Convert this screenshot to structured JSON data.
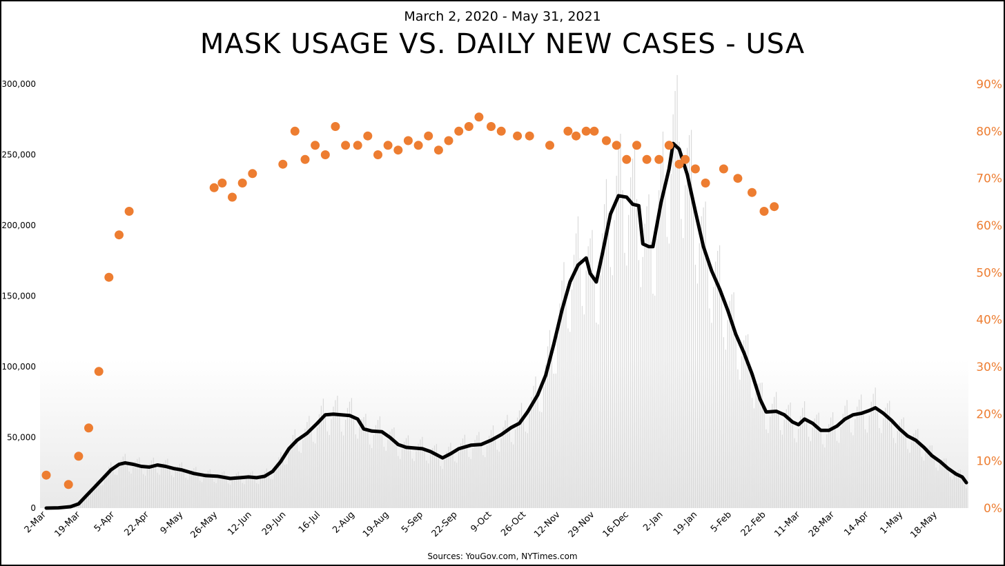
{
  "subtitle": "March 2, 2020 - May 31, 2021",
  "title": "MASK USAGE VS. DAILY NEW CASES - USA",
  "source": "Sources: YouGov.com, NYTimes.com",
  "colors": {
    "mask_dots": "#ED7D31",
    "cases_line": "#000000",
    "daily_bars": "#D9D9D9"
  },
  "chart_data": {
    "type": "line",
    "x_range": [
      "2020-03-02",
      "2021-05-31"
    ],
    "x_ticks": [
      "2-Mar",
      "19-Mar",
      "5-Apr",
      "22-Apr",
      "9-May",
      "26-May",
      "12-Jun",
      "29-Jun",
      "16-Jul",
      "2-Aug",
      "19-Aug",
      "5-Sep",
      "22-Sep",
      "9-Oct",
      "26-Oct",
      "12-Nov",
      "29-Nov",
      "16-Dec",
      "2-Jan",
      "19-Jan",
      "5-Feb",
      "22-Feb",
      "11-Mar",
      "28-Mar",
      "14-Apr",
      "1-May",
      "18-May"
    ],
    "y_left": {
      "ticks": [
        "0",
        "50,000",
        "100,000",
        "150,000",
        "200,000",
        "250,000",
        "300,000"
      ],
      "range": [
        0,
        300000
      ]
    },
    "y_right": {
      "ticks": [
        "0%",
        "10%",
        "20%",
        "30%",
        "40%",
        "50%",
        "60%",
        "70%",
        "80%",
        "90%"
      ],
      "range": [
        0,
        90
      ]
    },
    "series": [
      {
        "kind": "line",
        "axis": "left",
        "points": [
          [
            "2020-03-02",
            0
          ],
          [
            "2020-03-08",
            200
          ],
          [
            "2020-03-14",
            1000
          ],
          [
            "2020-03-18",
            3000
          ],
          [
            "2020-03-22",
            9000
          ],
          [
            "2020-03-26",
            15000
          ],
          [
            "2020-03-30",
            21000
          ],
          [
            "2020-04-03",
            27000
          ],
          [
            "2020-04-07",
            31000
          ],
          [
            "2020-04-10",
            32000
          ],
          [
            "2020-04-14",
            31000
          ],
          [
            "2020-04-18",
            29500
          ],
          [
            "2020-04-22",
            29000
          ],
          [
            "2020-04-26",
            30500
          ],
          [
            "2020-04-30",
            29500
          ],
          [
            "2020-05-04",
            28000
          ],
          [
            "2020-05-08",
            27000
          ],
          [
            "2020-05-14",
            24500
          ],
          [
            "2020-05-20",
            23000
          ],
          [
            "2020-05-26",
            22500
          ],
          [
            "2020-06-01",
            21000
          ],
          [
            "2020-06-06",
            21500
          ],
          [
            "2020-06-10",
            22000
          ],
          [
            "2020-06-14",
            21500
          ],
          [
            "2020-06-18",
            22500
          ],
          [
            "2020-06-22",
            26000
          ],
          [
            "2020-06-26",
            33000
          ],
          [
            "2020-06-30",
            42000
          ],
          [
            "2020-07-04",
            48000
          ],
          [
            "2020-07-09",
            53000
          ],
          [
            "2020-07-14",
            60000
          ],
          [
            "2020-07-18",
            66000
          ],
          [
            "2020-07-22",
            66500
          ],
          [
            "2020-07-26",
            66000
          ],
          [
            "2020-07-30",
            65500
          ],
          [
            "2020-08-03",
            63000
          ],
          [
            "2020-08-06",
            56000
          ],
          [
            "2020-08-10",
            54500
          ],
          [
            "2020-08-15",
            54000
          ],
          [
            "2020-08-19",
            50000
          ],
          [
            "2020-08-23",
            45000
          ],
          [
            "2020-08-27",
            43000
          ],
          [
            "2020-08-31",
            42500
          ],
          [
            "2020-09-04",
            42000
          ],
          [
            "2020-09-08",
            40000
          ],
          [
            "2020-09-14",
            35500
          ],
          [
            "2020-09-18",
            38500
          ],
          [
            "2020-09-22",
            42000
          ],
          [
            "2020-09-28",
            44500
          ],
          [
            "2020-10-03",
            45000
          ],
          [
            "2020-10-08",
            48000
          ],
          [
            "2020-10-13",
            52000
          ],
          [
            "2020-10-18",
            57000
          ],
          [
            "2020-10-22",
            60000
          ],
          [
            "2020-10-26",
            68000
          ],
          [
            "2020-10-31",
            80000
          ],
          [
            "2020-11-04",
            94000
          ],
          [
            "2020-11-08",
            116000
          ],
          [
            "2020-11-12",
            140000
          ],
          [
            "2020-11-16",
            160000
          ],
          [
            "2020-11-20",
            172000
          ],
          [
            "2020-11-24",
            177000
          ],
          [
            "2020-11-26",
            166000
          ],
          [
            "2020-11-29",
            160000
          ],
          [
            "2020-12-02",
            180000
          ],
          [
            "2020-12-06",
            208000
          ],
          [
            "2020-12-10",
            221000
          ],
          [
            "2020-12-14",
            220000
          ],
          [
            "2020-12-17",
            215000
          ],
          [
            "2020-12-20",
            214000
          ],
          [
            "2020-12-22",
            187000
          ],
          [
            "2020-12-25",
            185000
          ],
          [
            "2020-12-27",
            185000
          ],
          [
            "2020-12-31",
            216000
          ],
          [
            "2021-01-04",
            240000
          ],
          [
            "2021-01-06",
            258000
          ],
          [
            "2021-01-09",
            254000
          ],
          [
            "2021-01-13",
            236000
          ],
          [
            "2021-01-17",
            210000
          ],
          [
            "2021-01-21",
            185000
          ],
          [
            "2021-01-25",
            168000
          ],
          [
            "2021-01-29",
            155000
          ],
          [
            "2021-02-02",
            140000
          ],
          [
            "2021-02-06",
            123000
          ],
          [
            "2021-02-10",
            110000
          ],
          [
            "2021-02-14",
            95000
          ],
          [
            "2021-02-18",
            77000
          ],
          [
            "2021-02-21",
            68000
          ],
          [
            "2021-02-26",
            68500
          ],
          [
            "2021-03-02",
            66000
          ],
          [
            "2021-03-06",
            61000
          ],
          [
            "2021-03-09",
            59000
          ],
          [
            "2021-03-12",
            63000
          ],
          [
            "2021-03-16",
            60000
          ],
          [
            "2021-03-20",
            55000
          ],
          [
            "2021-03-24",
            55000
          ],
          [
            "2021-03-28",
            58000
          ],
          [
            "2021-04-01",
            63000
          ],
          [
            "2021-04-05",
            66000
          ],
          [
            "2021-04-09",
            67000
          ],
          [
            "2021-04-13",
            69000
          ],
          [
            "2021-04-16",
            71000
          ],
          [
            "2021-04-20",
            67000
          ],
          [
            "2021-04-24",
            62000
          ],
          [
            "2021-04-28",
            56000
          ],
          [
            "2021-05-02",
            51000
          ],
          [
            "2021-05-06",
            48000
          ],
          [
            "2021-05-10",
            43000
          ],
          [
            "2021-05-14",
            37000
          ],
          [
            "2021-05-18",
            33000
          ],
          [
            "2021-05-22",
            28000
          ],
          [
            "2021-05-26",
            24000
          ],
          [
            "2021-05-29",
            22000
          ],
          [
            "2021-05-31",
            18000
          ]
        ]
      },
      {
        "kind": "scatter",
        "axis": "right",
        "points": [
          [
            "2020-03-02",
            7
          ],
          [
            "2020-03-13",
            5
          ],
          [
            "2020-03-18",
            11
          ],
          [
            "2020-03-23",
            17
          ],
          [
            "2020-03-28",
            29
          ],
          [
            "2020-04-02",
            49
          ],
          [
            "2020-04-07",
            58
          ],
          [
            "2020-04-12",
            63
          ],
          [
            "2020-05-24",
            68
          ],
          [
            "2020-05-28",
            69
          ],
          [
            "2020-06-02",
            66
          ],
          [
            "2020-06-07",
            69
          ],
          [
            "2020-06-12",
            71
          ],
          [
            "2020-06-27",
            73
          ],
          [
            "2020-07-03",
            80
          ],
          [
            "2020-07-08",
            74
          ],
          [
            "2020-07-13",
            77
          ],
          [
            "2020-07-18",
            75
          ],
          [
            "2020-07-23",
            81
          ],
          [
            "2020-07-28",
            77
          ],
          [
            "2020-08-03",
            77
          ],
          [
            "2020-08-08",
            79
          ],
          [
            "2020-08-13",
            75
          ],
          [
            "2020-08-18",
            77
          ],
          [
            "2020-08-23",
            76
          ],
          [
            "2020-08-28",
            78
          ],
          [
            "2020-09-02",
            77
          ],
          [
            "2020-09-07",
            79
          ],
          [
            "2020-09-12",
            76
          ],
          [
            "2020-09-17",
            78
          ],
          [
            "2020-09-22",
            80
          ],
          [
            "2020-09-27",
            81
          ],
          [
            "2020-10-02",
            83
          ],
          [
            "2020-10-08",
            81
          ],
          [
            "2020-10-13",
            80
          ],
          [
            "2020-10-21",
            79
          ],
          [
            "2020-10-27",
            79
          ],
          [
            "2020-11-06",
            77
          ],
          [
            "2020-11-15",
            80
          ],
          [
            "2020-11-19",
            79
          ],
          [
            "2020-11-24",
            80
          ],
          [
            "2020-11-28",
            80
          ],
          [
            "2020-12-04",
            78
          ],
          [
            "2020-12-09",
            77
          ],
          [
            "2020-12-14",
            74
          ],
          [
            "2020-12-19",
            77
          ],
          [
            "2020-12-24",
            74
          ],
          [
            "2020-12-30",
            74
          ],
          [
            "2021-01-04",
            77
          ],
          [
            "2021-01-09",
            73
          ],
          [
            "2021-01-12",
            74
          ],
          [
            "2021-01-17",
            72
          ],
          [
            "2021-01-22",
            69
          ],
          [
            "2021-01-31",
            72
          ],
          [
            "2021-02-07",
            70
          ],
          [
            "2021-02-14",
            67
          ],
          [
            "2021-02-20",
            63
          ],
          [
            "2021-02-25",
            64
          ]
        ]
      }
    ]
  }
}
